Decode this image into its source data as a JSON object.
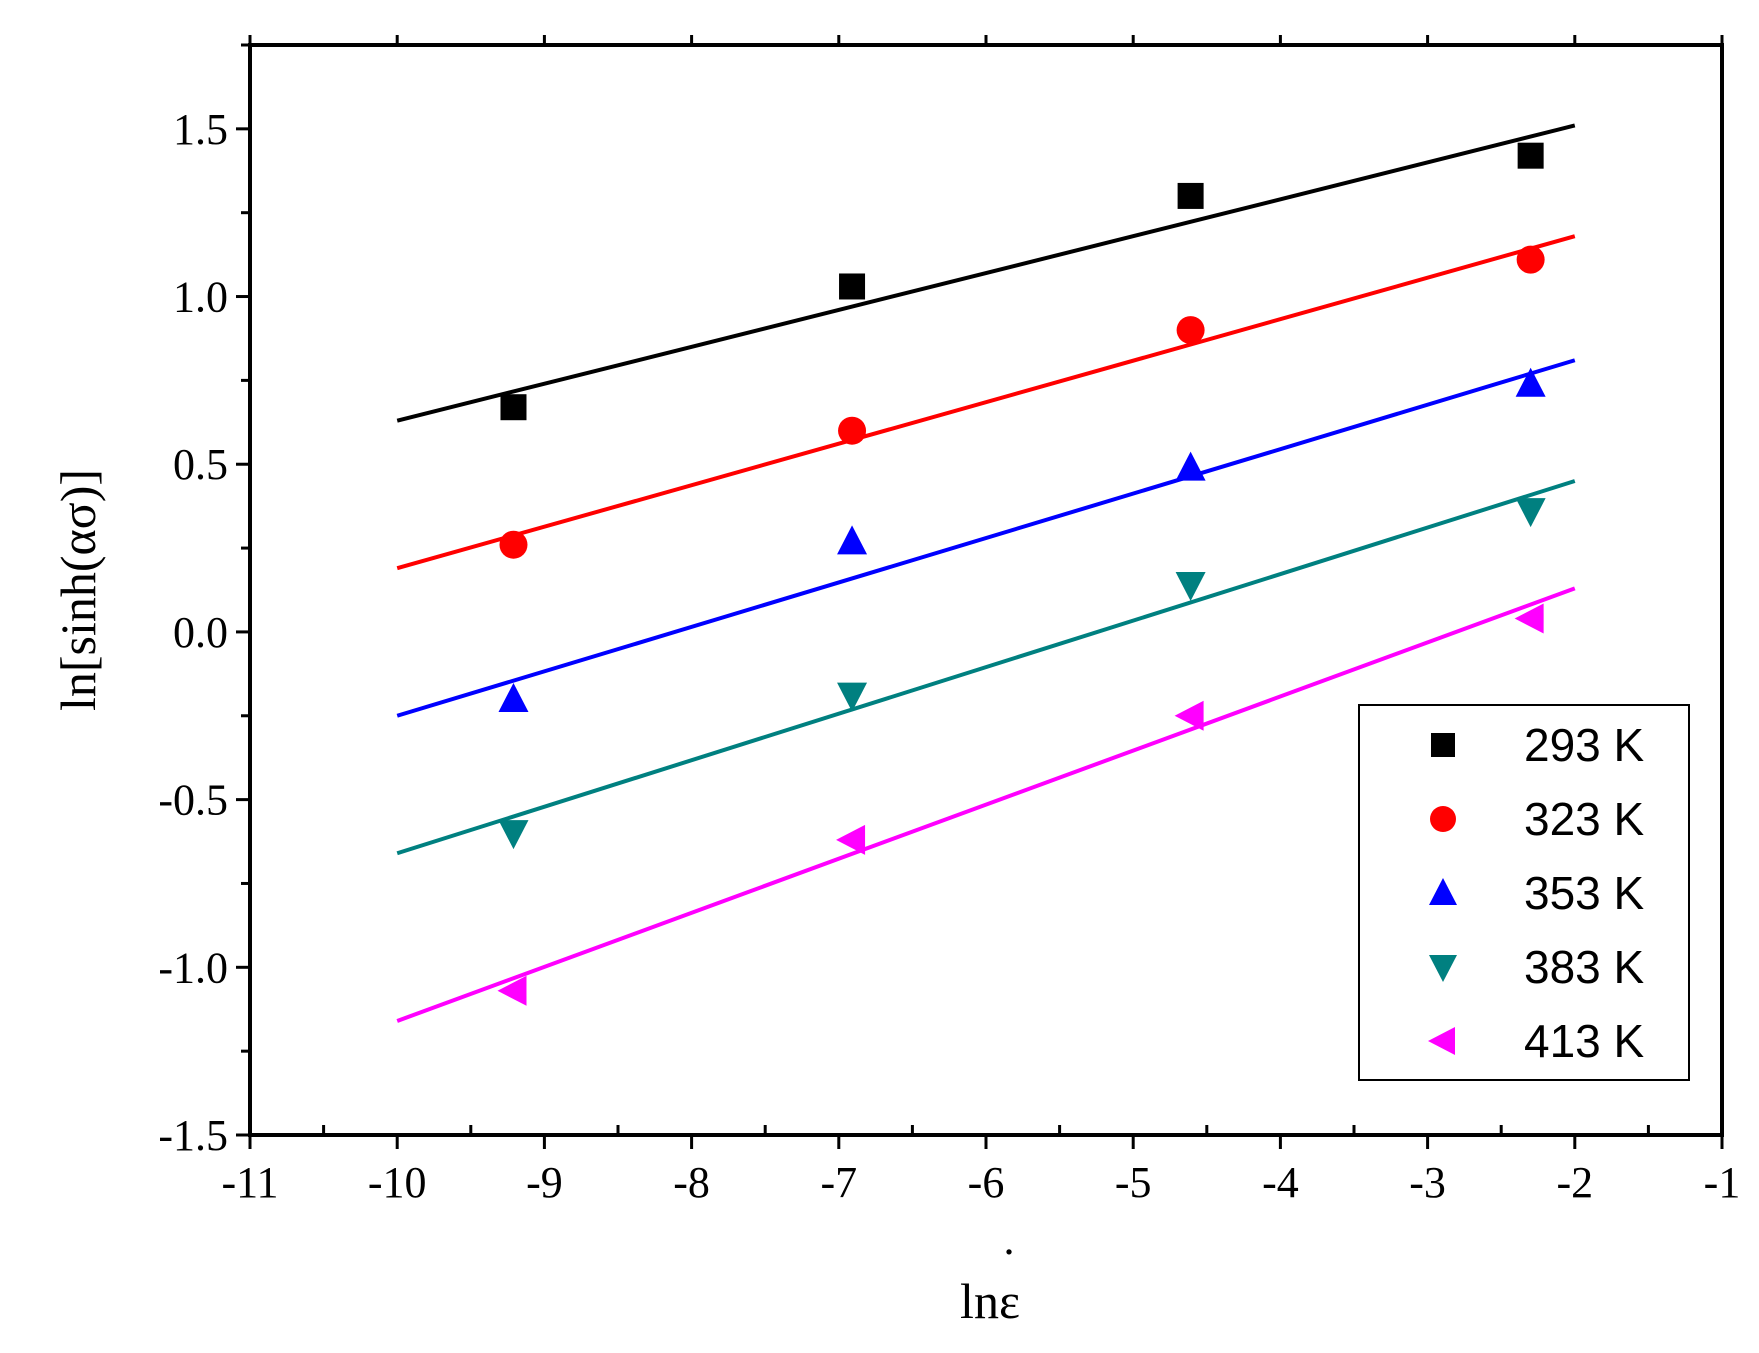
{
  "chart_data": {
    "type": "scatter",
    "title": "",
    "xlabel": "lnε",
    "xlabel_dot": "˙",
    "ylabel": "ln[sinh(ασ)]",
    "xlim": [
      -11,
      -1
    ],
    "ylim": [
      -1.5,
      1.75
    ],
    "xticks": [
      -11,
      -10,
      -9,
      -8,
      -7,
      -6,
      -5,
      -4,
      -3,
      -2,
      -1
    ],
    "yticks": [
      -1.5,
      -1.0,
      -0.5,
      0.0,
      0.5,
      1.0,
      1.5
    ],
    "x_tick_labels": [
      "-11",
      "-10",
      "-9",
      "-8",
      "-7",
      "-6",
      "-5",
      "-4",
      "-3",
      "-2",
      "-1"
    ],
    "y_tick_labels": [
      "-1.5",
      "-1.0",
      "-0.5",
      "0.0",
      "0.5",
      "1.0",
      "1.5"
    ],
    "legend_position": "bottom-right",
    "x": [
      -9.21,
      -6.91,
      -4.61,
      -2.3
    ],
    "fit_range": [
      -10,
      -2
    ],
    "series": [
      {
        "name": "293 K",
        "color": "#000000",
        "marker": "square",
        "values": [
          0.67,
          1.03,
          1.3,
          1.42
        ],
        "fit": [
          0.63,
          1.51
        ]
      },
      {
        "name": "323 K",
        "color": "#ff0000",
        "marker": "circle",
        "values": [
          0.26,
          0.6,
          0.9,
          1.11
        ],
        "fit": [
          0.19,
          1.18
        ]
      },
      {
        "name": "353 K",
        "color": "#0000ff",
        "marker": "triangle-up",
        "values": [
          -0.2,
          0.27,
          0.49,
          0.74
        ],
        "fit": [
          -0.25,
          0.81
        ]
      },
      {
        "name": "383 K",
        "color": "#008080",
        "marker": "triangle-down",
        "values": [
          -0.6,
          -0.19,
          0.14,
          0.36
        ],
        "fit": [
          -0.66,
          0.45
        ]
      },
      {
        "name": "413 K",
        "color": "#ff00ff",
        "marker": "triangle-left",
        "values": [
          -1.07,
          -0.62,
          -0.25,
          0.04
        ],
        "fit": [
          -1.16,
          0.13
        ]
      }
    ]
  }
}
